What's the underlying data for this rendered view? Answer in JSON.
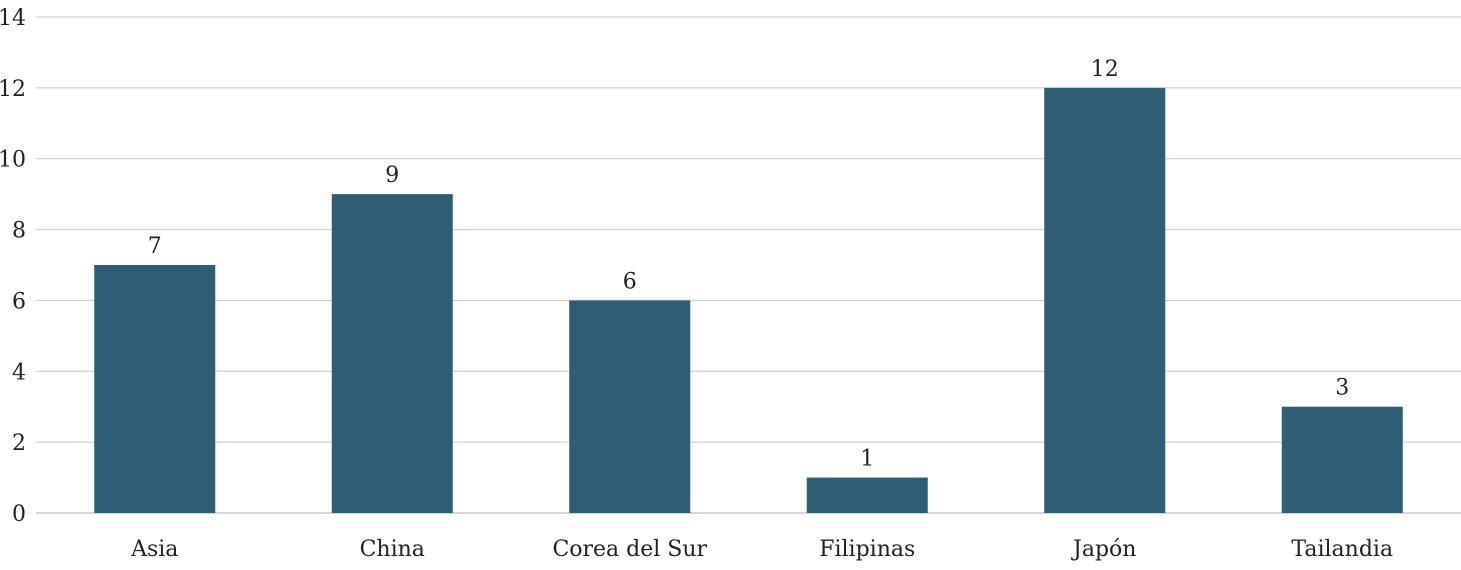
{
  "chart_data": {
    "type": "bar",
    "categories": [
      "Asia",
      "China",
      "Corea del Sur",
      "Filipinas",
      "Japón",
      "Tailandia"
    ],
    "values": [
      7,
      9,
      6,
      1,
      12,
      3
    ],
    "ylim": [
      0,
      14
    ],
    "yticks": [
      0,
      2,
      4,
      6,
      8,
      10,
      12,
      14
    ],
    "data_labels": [
      "7",
      "9",
      "6",
      "1",
      "12",
      "3"
    ],
    "grid": true,
    "legend": "none",
    "bar_color": "#2e5d74"
  }
}
